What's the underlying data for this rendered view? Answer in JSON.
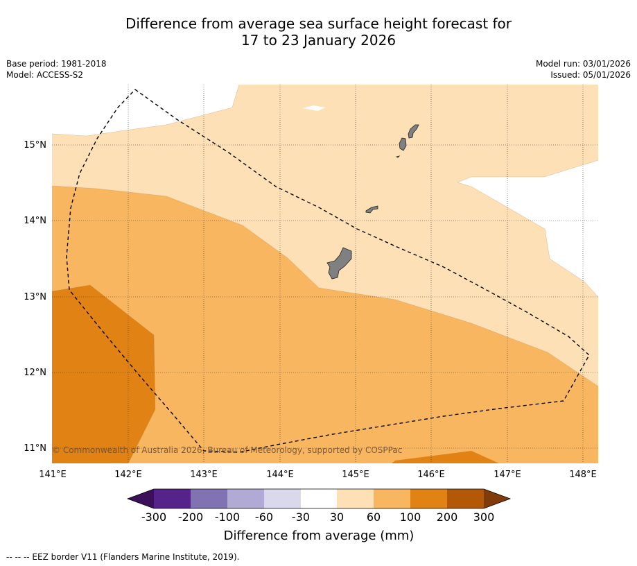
{
  "title": {
    "line1": "Difference from average sea surface height forecast for",
    "line2": "17 to 23 January 2026"
  },
  "meta": {
    "base_period": "Base period: 1981-2018",
    "model": "Model: ACCESS-S2",
    "model_run": "Model run: 03/01/2026",
    "issued": "Issued: 05/01/2026"
  },
  "map": {
    "lat_labels": [
      "15°N",
      "14°N",
      "13°N",
      "12°N",
      "11°N"
    ],
    "lon_labels": [
      "141°E",
      "142°E",
      "143°E",
      "144°E",
      "145°E",
      "146°E",
      "147°E",
      "148°E"
    ],
    "copyright": "© Commonwealth of Australia 2026, Bureau of Meteorology, supported by COSPPac",
    "land_color": "#808080",
    "eez_line_style": "dashed"
  },
  "colorbar": {
    "ticks": [
      "-300",
      "-200",
      "-100",
      "-60",
      "-30",
      "30",
      "60",
      "100",
      "200",
      "300"
    ],
    "colors": [
      "#3b0f5a",
      "#56238a",
      "#8172b2",
      "#b1aad5",
      "#d9d9eb",
      "#ffffff",
      "#fde0b6",
      "#f9b660",
      "#e08214",
      "#b35806",
      "#7f3b08"
    ],
    "label": "Difference from average (mm)"
  },
  "footnote": "--  --  -- EEZ border V11 (Flanders Marine Institute, 2019)."
}
